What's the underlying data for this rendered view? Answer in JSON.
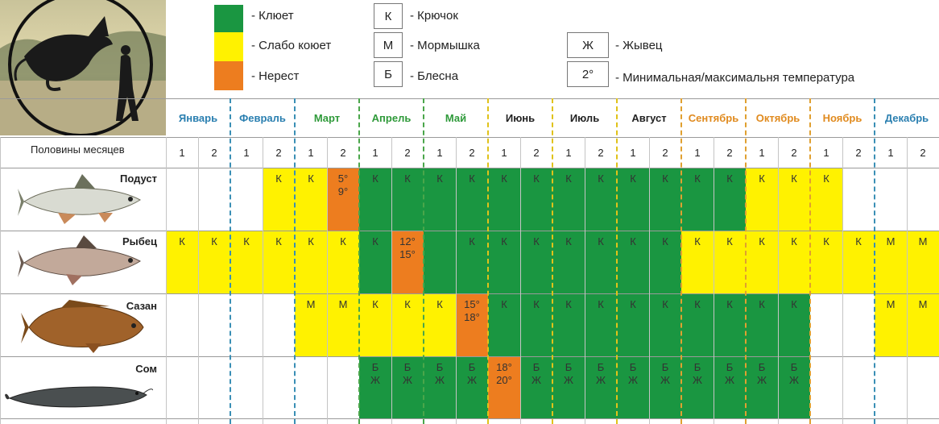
{
  "colors": {
    "bite": "#1a9641",
    "weak": "#fff200",
    "spawn": "#ed7d1f",
    "empty": "#ffffff"
  },
  "legend": {
    "bite": "- Клюет",
    "weak": "- Слабо коюет",
    "spawn": "- Нерест",
    "hook_symbol": "К",
    "hook": "- Крючок",
    "jig_symbol": "М",
    "jig": "- Мормышка",
    "spoon_symbol": "Б",
    "spoon": "- Блесна",
    "live_symbol": "Ж",
    "live": "- Жывец",
    "temp_symbol": "2°",
    "temp": "- Минимальная/максимальня температура"
  },
  "months": [
    {
      "name": "Январь",
      "color": "#2a7fb0"
    },
    {
      "name": "Февраль",
      "color": "#2a7fb0"
    },
    {
      "name": "Март",
      "color": "#2f9a3a"
    },
    {
      "name": "Апрель",
      "color": "#2f9a3a"
    },
    {
      "name": "Май",
      "color": "#2f9a3a"
    },
    {
      "name": "Июнь",
      "color": "#222222"
    },
    {
      "name": "Июль",
      "color": "#222222"
    },
    {
      "name": "Август",
      "color": "#222222"
    },
    {
      "name": "Сентябрь",
      "color": "#e08a1e"
    },
    {
      "name": "Октябрь",
      "color": "#e08a1e"
    },
    {
      "name": "Ноябрь",
      "color": "#e08a1e"
    },
    {
      "name": "Декабрь",
      "color": "#2a7fb0"
    }
  ],
  "halves_label": "Половины месяцев",
  "half_labels": [
    "1",
    "2"
  ],
  "separator_colors": [
    "#3a8fb5",
    "#3a8fb5",
    "#4aa64a",
    "#4aa64a",
    "#e0c21a",
    "#e0c21a",
    "#e0c21a",
    "#e0a030",
    "#e0a030",
    "#e0a030",
    "#3a8fb5"
  ],
  "fish": [
    {
      "name": "Подуст",
      "fill": [
        "e",
        "e",
        "e",
        "w",
        "w",
        "s",
        "b",
        "b",
        "b",
        "b",
        "b",
        "b",
        "b",
        "b",
        "b",
        "b",
        "b",
        "b",
        "w",
        "w",
        "w",
        "e",
        "e",
        "e"
      ],
      "text": [
        [
          "",
          "",
          ""
        ],
        [
          "",
          "",
          ""
        ],
        [
          "",
          "",
          ""
        ],
        [
          "К"
        ],
        [
          "К"
        ],
        [
          "5°",
          "9°"
        ],
        [
          "К"
        ],
        [
          "К"
        ],
        [
          "К"
        ],
        [
          "К"
        ],
        [
          "К"
        ],
        [
          "К"
        ],
        [
          "К"
        ],
        [
          "К"
        ],
        [
          "К"
        ],
        [
          "К"
        ],
        [
          "К"
        ],
        [
          "К"
        ],
        [
          "К"
        ],
        [
          "К"
        ],
        [
          "К"
        ],
        [],
        [],
        []
      ]
    },
    {
      "name": "Рыбец",
      "fill": [
        "w",
        "w",
        "w",
        "w",
        "w",
        "w",
        "b",
        "s",
        "b",
        "b",
        "b",
        "b",
        "b",
        "b",
        "b",
        "b",
        "w",
        "w",
        "w",
        "w",
        "w",
        "w",
        "w",
        "w"
      ],
      "text": [
        [
          "К"
        ],
        [
          "К"
        ],
        [
          "К"
        ],
        [
          "К"
        ],
        [
          "К"
        ],
        [
          "К"
        ],
        [
          "К"
        ],
        [
          "12°",
          "15°"
        ],
        [],
        [
          "К"
        ],
        [
          "К"
        ],
        [
          "К"
        ],
        [
          "К"
        ],
        [
          "К"
        ],
        [
          "К"
        ],
        [
          "К"
        ],
        [
          "К"
        ],
        [
          "К"
        ],
        [
          "К"
        ],
        [
          "К"
        ],
        [
          "К"
        ],
        [
          "К"
        ],
        [
          "М"
        ],
        [
          "М"
        ]
      ]
    },
    {
      "name": "Сазан",
      "fill": [
        "e",
        "e",
        "e",
        "e",
        "w",
        "w",
        "w",
        "w",
        "w",
        "s",
        "b",
        "b",
        "b",
        "b",
        "b",
        "b",
        "b",
        "b",
        "b",
        "b",
        "e",
        "e",
        "w",
        "w"
      ],
      "text": [
        [],
        [],
        [],
        [],
        [
          "М"
        ],
        [
          "М"
        ],
        [
          "К"
        ],
        [
          "К"
        ],
        [
          "К"
        ],
        [
          "15°",
          "18°"
        ],
        [
          "К"
        ],
        [
          "К"
        ],
        [
          "К"
        ],
        [
          "К"
        ],
        [
          "К"
        ],
        [
          "К"
        ],
        [
          "К"
        ],
        [
          "К"
        ],
        [
          "К"
        ],
        [
          "К"
        ],
        [],
        [],
        [
          "М"
        ],
        [
          "М"
        ]
      ]
    },
    {
      "name": "Сом",
      "fill": [
        "e",
        "e",
        "e",
        "e",
        "e",
        "e",
        "b",
        "b",
        "b",
        "b",
        "s",
        "b",
        "b",
        "b",
        "b",
        "b",
        "b",
        "b",
        "b",
        "b",
        "e",
        "e",
        "e",
        "e"
      ],
      "text": [
        [],
        [],
        [],
        [],
        [],
        [],
        [
          "Б",
          "Ж"
        ],
        [
          "Б",
          "Ж"
        ],
        [
          "Б",
          "Ж"
        ],
        [
          "Б",
          "Ж"
        ],
        [
          "18°",
          "20°"
        ],
        [
          "Б",
          "Ж"
        ],
        [
          "Б",
          "Ж"
        ],
        [
          "Б",
          "Ж"
        ],
        [
          "Б",
          "Ж"
        ],
        [
          "Б",
          "Ж"
        ],
        [
          "Б",
          "Ж"
        ],
        [
          "Б",
          "Ж"
        ],
        [
          "Б",
          "Ж"
        ],
        [
          "Б",
          "Ж"
        ],
        [],
        [],
        [],
        []
      ]
    }
  ]
}
